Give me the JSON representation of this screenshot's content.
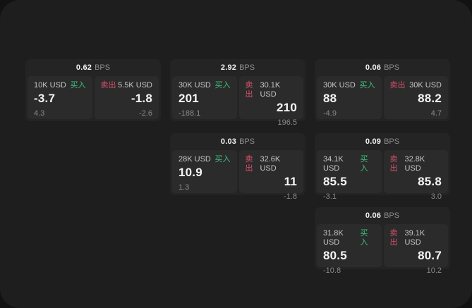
{
  "colors": {
    "buy_green": "#3fbf7c",
    "sell_red": "#d4506a",
    "window_bg": "#1e1e1e",
    "card_bg": "#242424",
    "panel_bg": "#2b2b2b"
  },
  "labels": {
    "bps_unit": "BPS",
    "buy": "买入",
    "sell": "卖出"
  },
  "cards": [
    {
      "bps": "0.62",
      "unit": "BPS",
      "buy": {
        "amount": "10K USD",
        "label": "买入",
        "price": "-3.7",
        "change": "4.3"
      },
      "sell": {
        "label": "卖出",
        "amount": "5.5K USD",
        "price": "-1.8",
        "change": "-2.6"
      }
    },
    {
      "bps": "2.92",
      "unit": "BPS",
      "buy": {
        "amount": "30K USD",
        "label": "买入",
        "price": "201",
        "change": "-188.1"
      },
      "sell": {
        "label": "卖出",
        "amount": "30.1K USD",
        "price": "210",
        "change": "196.5"
      }
    },
    {
      "bps": "0.06",
      "unit": "BPS",
      "buy": {
        "amount": "30K USD",
        "label": "买入",
        "price": "88",
        "change": "-4.9"
      },
      "sell": {
        "label": "卖出",
        "amount": "30K USD",
        "price": "88.2",
        "change": "4.7"
      }
    },
    {
      "bps": "0.03",
      "unit": "BPS",
      "buy": {
        "amount": "28K USD",
        "label": "买入",
        "price": "10.9",
        "change": "1.3"
      },
      "sell": {
        "label": "卖出",
        "amount": "32.6K USD",
        "price": "11",
        "change": "-1.8"
      }
    },
    {
      "bps": "0.09",
      "unit": "BPS",
      "buy": {
        "amount": "34.1K USD",
        "label": "买入",
        "price": "85.5",
        "change": "-3.1"
      },
      "sell": {
        "label": "卖出",
        "amount": "32.8K USD",
        "price": "85.8",
        "change": "3.0"
      }
    },
    {
      "bps": "0.06",
      "unit": "BPS",
      "buy": {
        "amount": "31.8K USD",
        "label": "买入",
        "price": "80.5",
        "change": "-10.8"
      },
      "sell": {
        "label": "卖出",
        "amount": "39.1K USD",
        "price": "80.7",
        "change": "10.2"
      }
    }
  ]
}
